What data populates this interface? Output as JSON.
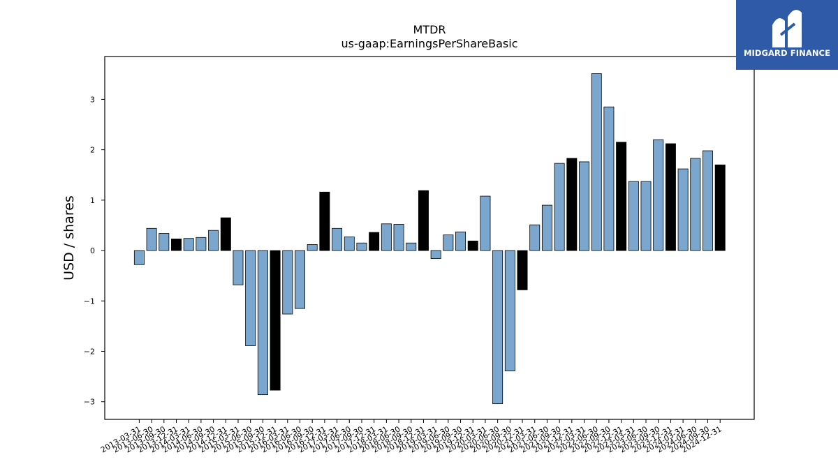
{
  "chart_data": {
    "type": "bar",
    "title": "MTDR",
    "subtitle": "us-gaap:EarningsPerShareBasic",
    "xlabel": "",
    "ylabel": "USD / shares",
    "ylim": [
      -3.35,
      3.85
    ],
    "yticks": [
      -3,
      -2,
      -1,
      0,
      1,
      2,
      3
    ],
    "ytick_labels": [
      "−3",
      "−2",
      "−1",
      "0",
      "1",
      "2",
      "3"
    ],
    "grid": false,
    "colors": {
      "quarter": "#7ba7cf",
      "year_end": "#000000",
      "edge": "#000000"
    },
    "categories": [
      "2013-03-31",
      "2013-06-30",
      "2013-09-30",
      "2013-12-31",
      "2014-03-31",
      "2014-06-30",
      "2014-09-30",
      "2014-12-31",
      "2015-03-31",
      "2015-06-30",
      "2015-09-30",
      "2015-12-31",
      "2016-03-31",
      "2016-06-30",
      "2016-09-30",
      "2016-12-31",
      "2017-03-31",
      "2017-06-30",
      "2017-09-30",
      "2017-12-31",
      "2018-03-31",
      "2018-06-30",
      "2018-09-30",
      "2018-12-31",
      "2019-03-31",
      "2019-06-30",
      "2019-09-30",
      "2019-12-31",
      "2020-03-31",
      "2020-06-30",
      "2020-09-30",
      "2020-12-31",
      "2021-03-31",
      "2021-06-30",
      "2021-09-30",
      "2021-12-31",
      "2022-03-31",
      "2022-06-30",
      "2022-09-30",
      "2022-12-31",
      "2023-03-31",
      "2023-06-30",
      "2023-09-30",
      "2023-12-31",
      "2024-03-31",
      "2024-06-30",
      "2024-09-30",
      "2024-12-31"
    ],
    "values": [
      -0.28,
      0.44,
      0.34,
      0.23,
      0.24,
      0.26,
      0.4,
      0.65,
      -0.68,
      -1.89,
      -2.86,
      -2.77,
      -1.26,
      -1.15,
      0.12,
      1.16,
      0.44,
      0.27,
      0.15,
      0.36,
      0.53,
      0.52,
      0.15,
      1.19,
      -0.16,
      0.31,
      0.37,
      0.19,
      1.08,
      -3.04,
      -2.39,
      -0.78,
      0.51,
      0.9,
      1.73,
      1.83,
      1.76,
      3.51,
      2.85,
      2.15,
      1.37,
      1.37,
      2.2,
      2.12,
      1.62,
      1.83,
      1.98,
      1.7
    ],
    "year_end": [
      false,
      false,
      false,
      true,
      false,
      false,
      false,
      true,
      false,
      false,
      false,
      true,
      false,
      false,
      false,
      true,
      false,
      false,
      false,
      true,
      false,
      false,
      false,
      true,
      false,
      false,
      false,
      true,
      false,
      false,
      false,
      true,
      false,
      false,
      false,
      true,
      false,
      false,
      false,
      true,
      false,
      false,
      false,
      true,
      false,
      false,
      false,
      true
    ]
  },
  "logo": {
    "text": "MIDGARD FINANCE",
    "icon": "midgard-finance-logo-icon"
  }
}
